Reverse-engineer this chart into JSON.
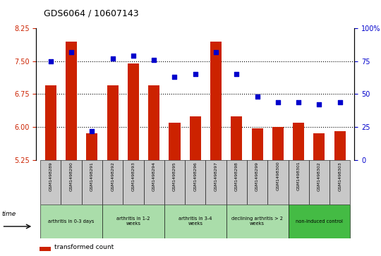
{
  "title": "GDS6064 / 10607143",
  "samples": [
    "GSM1498289",
    "GSM1498290",
    "GSM1498291",
    "GSM1498292",
    "GSM1498293",
    "GSM1498294",
    "GSM1498295",
    "GSM1498296",
    "GSM1498297",
    "GSM1498298",
    "GSM1498299",
    "GSM1498300",
    "GSM1498301",
    "GSM1498302",
    "GSM1498303"
  ],
  "bar_values": [
    6.95,
    7.95,
    5.85,
    6.95,
    7.45,
    6.95,
    6.1,
    6.25,
    7.95,
    6.25,
    5.97,
    6.0,
    6.1,
    5.85,
    5.9
  ],
  "dot_values": [
    75,
    82,
    22,
    77,
    79,
    76,
    63,
    65,
    82,
    65,
    48,
    44,
    44,
    42,
    44
  ],
  "ylim_left": [
    5.25,
    8.25
  ],
  "ylim_right": [
    0,
    100
  ],
  "yticks_left": [
    5.25,
    6.0,
    6.75,
    7.5,
    8.25
  ],
  "yticks_right": [
    0,
    25,
    50,
    75,
    100
  ],
  "groups": [
    {
      "label": "arthritis in 0-3 days",
      "start": 0,
      "end": 3,
      "color": "#aaddaa"
    },
    {
      "label": "arthritis in 1-2\nweeks",
      "start": 3,
      "end": 6,
      "color": "#aaddaa"
    },
    {
      "label": "arthritis in 3-4\nweeks",
      "start": 6,
      "end": 9,
      "color": "#aaddaa"
    },
    {
      "label": "declining arthritis > 2\nweeks",
      "start": 9,
      "end": 12,
      "color": "#aaddaa"
    },
    {
      "label": "non-induced control",
      "start": 12,
      "end": 15,
      "color": "#44bb44"
    }
  ],
  "bar_color": "#cc2200",
  "dot_color": "#0000cc",
  "background_color": "#ffffff",
  "tick_label_color_left": "#cc2200",
  "tick_label_color_right": "#0000cc",
  "sample_box_color": "#c8c8c8",
  "group_light_color": "#aaddaa",
  "group_dark_color": "#44bb44"
}
